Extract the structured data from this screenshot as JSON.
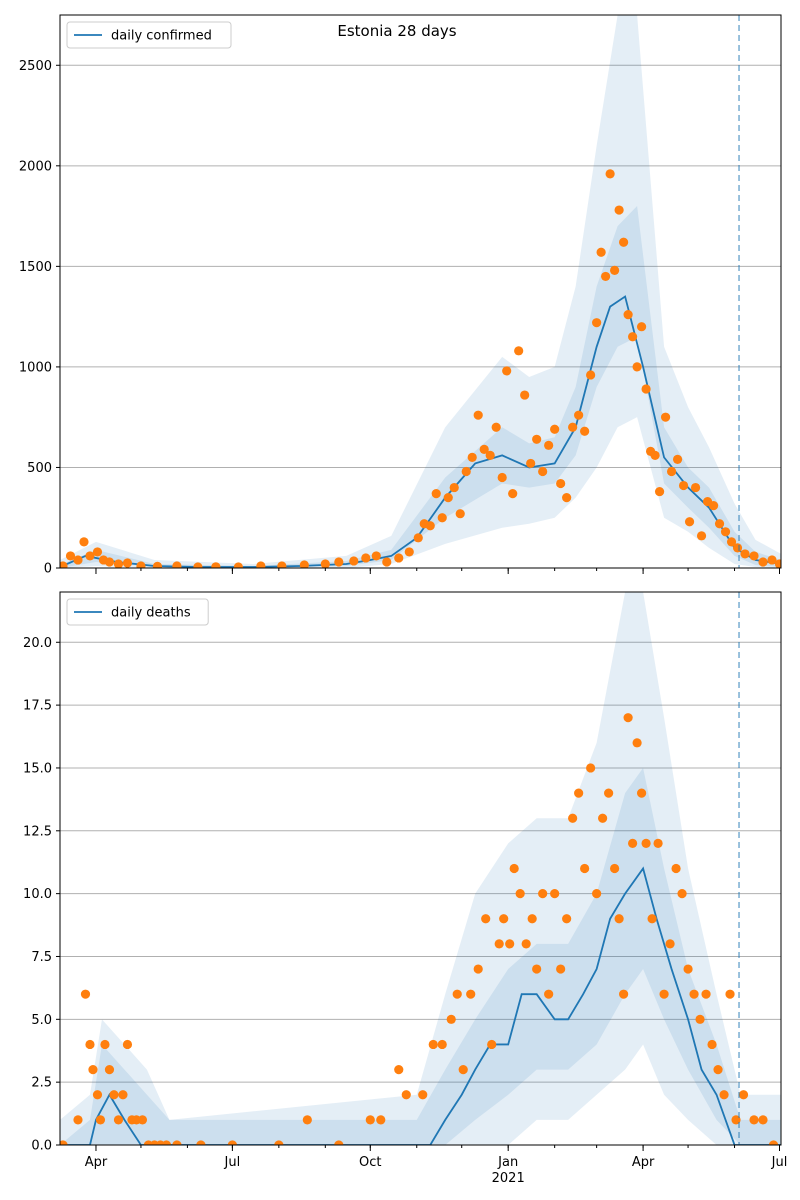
{
  "figure": {
    "title": "Estonia 28 days"
  },
  "colors": {
    "line": "#1f77b4",
    "band": "#1f77b4",
    "observed": "#ff7f0e",
    "grid": "#b0b0b0",
    "cutoff": "#1f77b4"
  },
  "chart_data": [
    {
      "type": "line",
      "id": "confirmed",
      "legend": [
        "daily confirmed"
      ],
      "ylim": [
        0,
        2750
      ],
      "yticks": [
        "0",
        "500",
        "1000",
        "1500",
        "2000",
        "2500"
      ],
      "ytick_values": [
        0,
        500,
        1000,
        1500,
        2000,
        2500
      ],
      "xlim": [
        "2020-03-08",
        "2021-07-02"
      ],
      "grid": "horizontal",
      "legend_position": "top-left",
      "vline_date": "2021-06-04",
      "series": [
        {
          "name": "daily confirmed",
          "x": [
            "2020-03-08",
            "2020-03-25",
            "2020-04-15",
            "2020-05-10",
            "2020-06-10",
            "2020-07-15",
            "2020-08-15",
            "2020-09-15",
            "2020-10-01",
            "2020-10-15",
            "2020-11-01",
            "2020-11-20",
            "2020-12-10",
            "2020-12-28",
            "2021-01-15",
            "2021-02-01",
            "2021-02-15",
            "2021-03-01",
            "2021-03-10",
            "2021-03-20",
            "2021-04-01",
            "2021-04-15",
            "2021-05-01",
            "2021-05-15",
            "2021-06-01",
            "2021-06-15",
            "2021-07-02"
          ],
          "values": [
            5,
            60,
            30,
            10,
            5,
            5,
            10,
            20,
            40,
            60,
            150,
            350,
            520,
            560,
            500,
            520,
            700,
            1100,
            1300,
            1350,
            1000,
            550,
            400,
            300,
            100,
            40,
            20
          ]
        },
        {
          "name": "confidence-band-inner",
          "x": [
            "2020-03-08",
            "2020-04-01",
            "2020-05-10",
            "2020-07-15",
            "2020-09-15",
            "2020-10-15",
            "2020-11-20",
            "2020-12-28",
            "2021-01-15",
            "2021-02-01",
            "2021-02-15",
            "2021-03-01",
            "2021-03-15",
            "2021-03-28",
            "2021-04-15",
            "2021-05-01",
            "2021-05-15",
            "2021-06-01",
            "2021-06-15",
            "2021-07-02"
          ],
          "lower": [
            0,
            30,
            5,
            0,
            10,
            40,
            250,
            420,
            400,
            420,
            560,
            900,
            1100,
            1150,
            420,
            300,
            200,
            60,
            15,
            5
          ],
          "upper": [
            15,
            90,
            20,
            10,
            35,
            90,
            450,
            700,
            620,
            650,
            900,
            1400,
            1700,
            1800,
            700,
            500,
            400,
            180,
            80,
            40
          ]
        },
        {
          "name": "confidence-band-outer",
          "x": [
            "2020-03-08",
            "2020-04-01",
            "2020-05-10",
            "2020-07-15",
            "2020-09-15",
            "2020-10-15",
            "2020-11-20",
            "2020-12-28",
            "2021-01-15",
            "2021-02-01",
            "2021-02-15",
            "2021-03-01",
            "2021-03-15",
            "2021-03-28",
            "2021-04-15",
            "2021-05-01",
            "2021-05-15",
            "2021-06-01",
            "2021-06-15",
            "2021-07-02"
          ],
          "lower": [
            0,
            10,
            0,
            0,
            0,
            20,
            120,
            200,
            220,
            250,
            350,
            500,
            700,
            750,
            250,
            180,
            100,
            20,
            5,
            0
          ],
          "upper": [
            40,
            130,
            40,
            20,
            60,
            160,
            700,
            1050,
            950,
            1000,
            1400,
            2100,
            2750,
            2750,
            1100,
            800,
            600,
            320,
            140,
            70
          ]
        },
        {
          "name": "observed",
          "x": [
            "2020-03-10",
            "2020-03-15",
            "2020-03-20",
            "2020-03-24",
            "2020-03-28",
            "2020-04-02",
            "2020-04-06",
            "2020-04-10",
            "2020-04-16",
            "2020-04-22",
            "2020-05-01",
            "2020-05-12",
            "2020-05-25",
            "2020-06-08",
            "2020-06-20",
            "2020-07-05",
            "2020-07-20",
            "2020-08-03",
            "2020-08-18",
            "2020-09-01",
            "2020-09-10",
            "2020-09-20",
            "2020-09-28",
            "2020-10-05",
            "2020-10-12",
            "2020-10-20",
            "2020-10-27",
            "2020-11-02",
            "2020-11-06",
            "2020-11-10",
            "2020-11-14",
            "2020-11-18",
            "2020-11-22",
            "2020-11-26",
            "2020-11-30",
            "2020-12-04",
            "2020-12-08",
            "2020-12-12",
            "2020-12-16",
            "2020-12-20",
            "2020-12-24",
            "2020-12-28",
            "2020-12-31",
            "2021-01-04",
            "2021-01-08",
            "2021-01-12",
            "2021-01-16",
            "2021-01-20",
            "2021-01-24",
            "2021-01-28",
            "2021-02-01",
            "2021-02-05",
            "2021-02-09",
            "2021-02-13",
            "2021-02-17",
            "2021-02-21",
            "2021-02-25",
            "2021-03-01",
            "2021-03-04",
            "2021-03-07",
            "2021-03-10",
            "2021-03-13",
            "2021-03-16",
            "2021-03-19",
            "2021-03-22",
            "2021-03-25",
            "2021-03-28",
            "2021-03-31",
            "2021-04-03",
            "2021-04-06",
            "2021-04-09",
            "2021-04-12",
            "2021-04-16",
            "2021-04-20",
            "2021-04-24",
            "2021-04-28",
            "2021-05-02",
            "2021-05-06",
            "2021-05-10",
            "2021-05-14",
            "2021-05-18",
            "2021-05-22",
            "2021-05-26",
            "2021-05-30",
            "2021-06-03",
            "2021-06-08",
            "2021-06-14",
            "2021-06-20",
            "2021-06-26",
            "2021-07-01"
          ],
          "values": [
            10,
            60,
            40,
            130,
            60,
            80,
            40,
            30,
            20,
            25,
            10,
            8,
            10,
            5,
            6,
            5,
            10,
            10,
            15,
            20,
            30,
            35,
            50,
            60,
            30,
            50,
            80,
            150,
            220,
            210,
            370,
            250,
            350,
            400,
            270,
            480,
            550,
            760,
            590,
            560,
            700,
            450,
            980,
            370,
            1080,
            860,
            520,
            640,
            480,
            610,
            690,
            420,
            350,
            700,
            760,
            680,
            960,
            1220,
            1570,
            1450,
            1960,
            1480,
            1780,
            1620,
            1260,
            1150,
            1000,
            1200,
            890,
            580,
            560,
            380,
            750,
            480,
            540,
            410,
            230,
            400,
            160,
            330,
            310,
            220,
            180,
            130,
            100,
            70,
            60,
            30,
            40,
            20
          ]
        }
      ]
    },
    {
      "type": "line",
      "id": "deaths",
      "legend": [
        "daily deaths"
      ],
      "ylim": [
        0,
        22
      ],
      "yticks": [
        "0.0",
        "2.5",
        "5.0",
        "7.5",
        "10.0",
        "12.5",
        "15.0",
        "17.5",
        "20.0"
      ],
      "ytick_values": [
        0,
        2.5,
        5,
        7.5,
        10,
        12.5,
        15,
        17.5,
        20
      ],
      "xlim": [
        "2020-03-08",
        "2021-07-02"
      ],
      "xticks": [
        "Apr",
        "Jul",
        "Oct",
        "Jan",
        "Apr",
        "Jul"
      ],
      "xtick_dates": [
        "2020-04-01",
        "2020-07-01",
        "2020-10-01",
        "2021-01-01",
        "2021-04-01",
        "2021-07-01"
      ],
      "xyear_label": "2021",
      "grid": "horizontal",
      "legend_position": "top-left",
      "vline_date": "2021-06-04",
      "series": [
        {
          "name": "daily deaths",
          "x": [
            "2020-03-08",
            "2020-03-28",
            "2020-04-01",
            "2020-04-10",
            "2020-04-20",
            "2020-05-01",
            "2020-05-10",
            "2020-11-10",
            "2020-11-20",
            "2020-12-01",
            "2020-12-10",
            "2020-12-20",
            "2021-01-01",
            "2021-01-10",
            "2021-01-20",
            "2021-02-01",
            "2021-02-10",
            "2021-02-20",
            "2021-03-01",
            "2021-03-10",
            "2021-03-20",
            "2021-04-01",
            "2021-04-10",
            "2021-04-20",
            "2021-05-01",
            "2021-05-10",
            "2021-05-20",
            "2021-06-01",
            "2021-06-10",
            "2021-07-02"
          ],
          "values": [
            0,
            0,
            1,
            2,
            1,
            0,
            0,
            0,
            1,
            2,
            3,
            4,
            4,
            6,
            6,
            5,
            5,
            6,
            7,
            9,
            10,
            11,
            9,
            7,
            5,
            3,
            2,
            0,
            0,
            0
          ]
        },
        {
          "name": "confidence-band-inner",
          "x": [
            "2020-03-08",
            "2020-03-28",
            "2020-04-05",
            "2020-04-20",
            "2020-05-05",
            "2020-05-20",
            "2020-11-01",
            "2020-11-20",
            "2020-12-10",
            "2021-01-01",
            "2021-01-20",
            "2021-02-10",
            "2021-03-01",
            "2021-03-20",
            "2021-04-01",
            "2021-04-15",
            "2021-05-01",
            "2021-05-20",
            "2021-06-05",
            "2021-07-02"
          ],
          "lower": [
            0,
            0,
            0,
            0,
            0,
            0,
            0,
            0,
            1,
            2,
            3,
            3,
            4,
            6,
            7,
            5,
            3,
            1,
            0,
            0
          ],
          "upper": [
            0,
            1,
            4,
            3,
            2,
            1,
            1,
            3,
            5,
            7,
            8,
            8,
            10,
            14,
            15,
            11,
            7,
            4,
            1,
            1
          ]
        },
        {
          "name": "confidence-band-outer",
          "x": [
            "2020-03-08",
            "2020-03-28",
            "2020-04-05",
            "2020-04-20",
            "2020-05-05",
            "2020-05-20",
            "2020-11-01",
            "2020-11-20",
            "2020-12-10",
            "2021-01-01",
            "2021-01-20",
            "2021-02-10",
            "2021-03-01",
            "2021-03-20",
            "2021-04-01",
            "2021-04-15",
            "2021-05-01",
            "2021-05-20",
            "2021-06-05",
            "2021-07-02"
          ],
          "lower": [
            0,
            0,
            0,
            0,
            0,
            0,
            0,
            0,
            0,
            0,
            1,
            1,
            2,
            3,
            4,
            2,
            1,
            0,
            0,
            0
          ],
          "upper": [
            1,
            2,
            5,
            4,
            3,
            1,
            2,
            6,
            10,
            12,
            13,
            13,
            16,
            22,
            22,
            17,
            11,
            6,
            2,
            2
          ]
        },
        {
          "name": "observed",
          "x": [
            "2020-03-10",
            "2020-03-20",
            "2020-03-25",
            "2020-03-28",
            "2020-03-30",
            "2020-04-02",
            "2020-04-04",
            "2020-04-07",
            "2020-04-10",
            "2020-04-13",
            "2020-04-16",
            "2020-04-19",
            "2020-04-22",
            "2020-04-25",
            "2020-04-28",
            "2020-05-02",
            "2020-05-06",
            "2020-05-10",
            "2020-05-14",
            "2020-05-18",
            "2020-05-25",
            "2020-06-10",
            "2020-07-01",
            "2020-08-01",
            "2020-08-20",
            "2020-09-10",
            "2020-10-01",
            "2020-10-08",
            "2020-10-20",
            "2020-10-25",
            "2020-11-05",
            "2020-11-12",
            "2020-11-18",
            "2020-11-24",
            "2020-11-28",
            "2020-12-02",
            "2020-12-07",
            "2020-12-12",
            "2020-12-17",
            "2020-12-21",
            "2020-12-26",
            "2020-12-29",
            "2021-01-02",
            "2021-01-05",
            "2021-01-09",
            "2021-01-13",
            "2021-01-17",
            "2021-01-20",
            "2021-01-24",
            "2021-01-28",
            "2021-02-01",
            "2021-02-05",
            "2021-02-09",
            "2021-02-13",
            "2021-02-17",
            "2021-02-21",
            "2021-02-25",
            "2021-03-01",
            "2021-03-05",
            "2021-03-09",
            "2021-03-13",
            "2021-03-16",
            "2021-03-19",
            "2021-03-22",
            "2021-03-25",
            "2021-03-28",
            "2021-03-31",
            "2021-04-03",
            "2021-04-07",
            "2021-04-11",
            "2021-04-15",
            "2021-04-19",
            "2021-04-23",
            "2021-04-27",
            "2021-05-01",
            "2021-05-05",
            "2021-05-09",
            "2021-05-13",
            "2021-05-17",
            "2021-05-21",
            "2021-05-25",
            "2021-05-29",
            "2021-06-02",
            "2021-06-07",
            "2021-06-14",
            "2021-06-20",
            "2021-06-27"
          ],
          "values": [
            0,
            1,
            6,
            4,
            3,
            2,
            1,
            4,
            3,
            2,
            1,
            2,
            4,
            1,
            1,
            1,
            0,
            0,
            0,
            0,
            0,
            0,
            0,
            0,
            1,
            0,
            1,
            1,
            3,
            2,
            2,
            4,
            4,
            5,
            6,
            3,
            6,
            7,
            9,
            4,
            8,
            9,
            8,
            11,
            10,
            8,
            9,
            7,
            10,
            6,
            10,
            7,
            9,
            13,
            14,
            11,
            15,
            10,
            13,
            14,
            11,
            9,
            6,
            17,
            12,
            16,
            14,
            12,
            9,
            12,
            6,
            8,
            11,
            10,
            7,
            6,
            5,
            6,
            4,
            3,
            2,
            6,
            1,
            2,
            1,
            1,
            0
          ]
        }
      ]
    }
  ]
}
